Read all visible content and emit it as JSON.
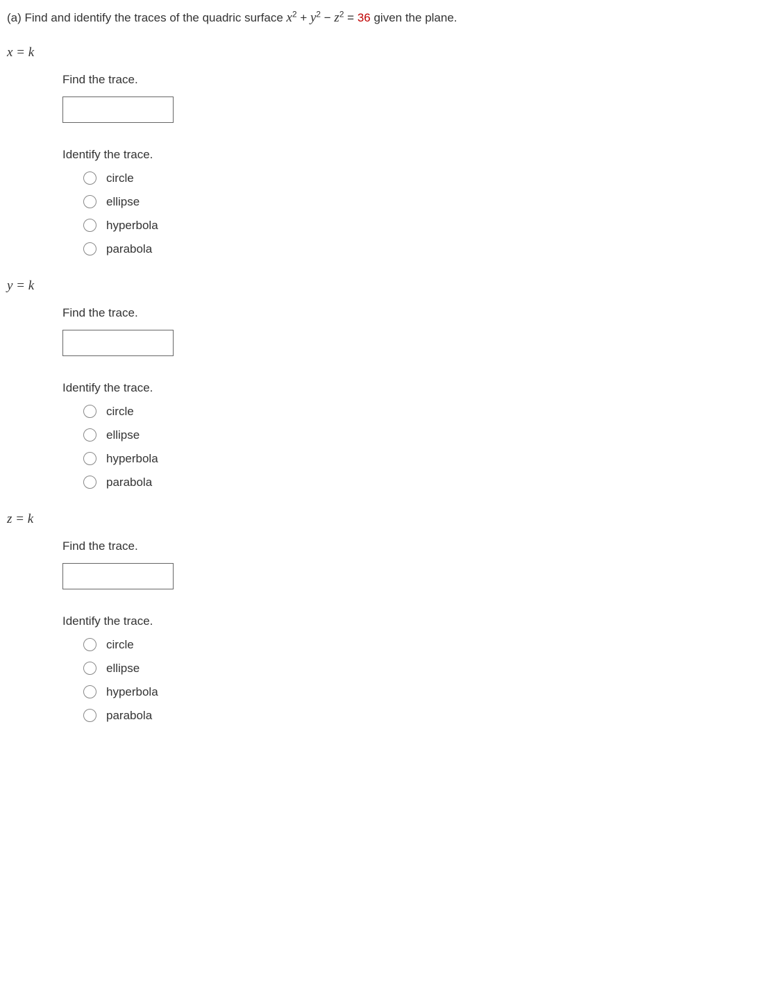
{
  "question": {
    "prefix": "(a) Find and identify the traces of the quadric surface  ",
    "equation_html": "<span class='italic'>x</span><sup>2</sup> + <span class='italic'>y</span><sup>2</sup> − <span class='italic'>z</span><sup>2</sup> = <span class='red'>36</span>",
    "suffix": "  given the plane."
  },
  "sections": [
    {
      "plane": "x = k",
      "find_label": "Find the trace.",
      "identify_label": "Identify the trace.",
      "options": [
        "circle",
        "ellipse",
        "hyperbola",
        "parabola"
      ]
    },
    {
      "plane": "y = k",
      "find_label": "Find the trace.",
      "identify_label": "Identify the trace.",
      "options": [
        "circle",
        "ellipse",
        "hyperbola",
        "parabola"
      ]
    },
    {
      "plane": "z = k",
      "find_label": "Find the trace.",
      "identify_label": "Identify the trace.",
      "options": [
        "circle",
        "ellipse",
        "hyperbola",
        "parabola"
      ]
    }
  ]
}
